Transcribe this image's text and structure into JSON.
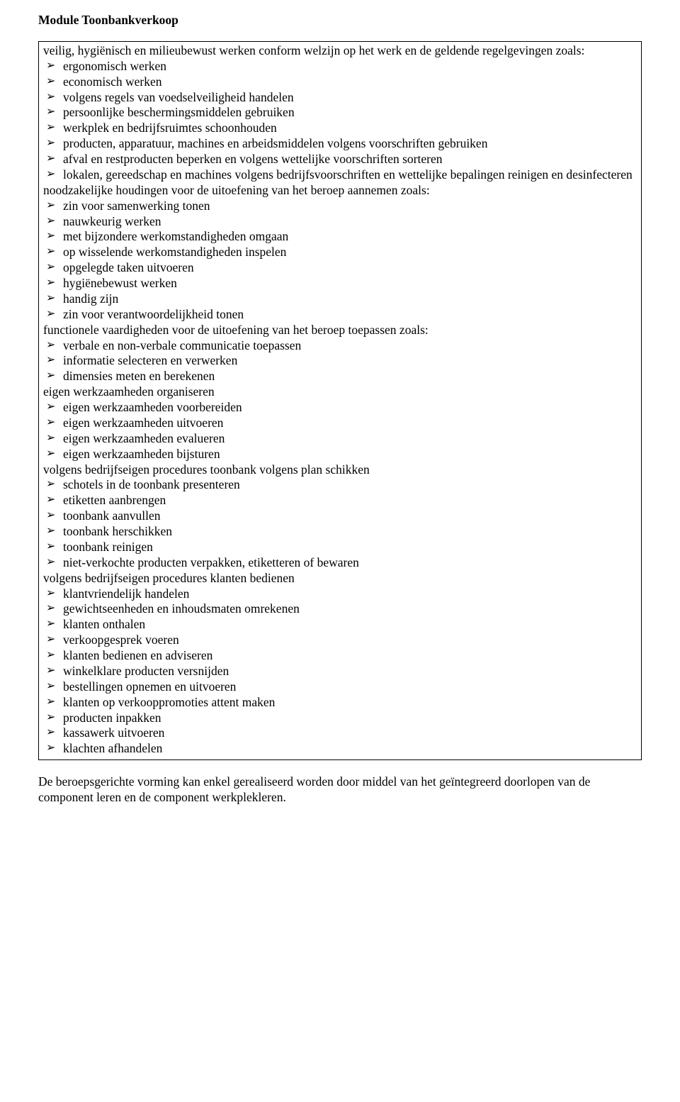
{
  "title": "Module Toonbankverkoop",
  "sections": [
    {
      "heading": "veilig, hygiënisch en milieubewust werken conform welzijn op het werk en de geldende regelgevingen zoals:",
      "items": [
        "ergonomisch werken",
        "economisch werken",
        "volgens regels van voedselveiligheid handelen",
        "persoonlijke beschermingsmiddelen gebruiken",
        "werkplek en bedrijfsruimtes schoonhouden",
        "producten, apparatuur, machines en arbeidsmiddelen volgens voorschriften gebruiken",
        "afval en restproducten beperken en volgens wettelijke voorschriften sorteren",
        "lokalen, gereedschap en machines volgens bedrijfsvoorschriften en wettelijke bepalingen reinigen en desinfecteren"
      ]
    },
    {
      "heading": "noodzakelijke houdingen voor de uitoefening van het beroep aannemen zoals:",
      "items": [
        "zin voor samenwerking tonen",
        "nauwkeurig werken",
        "met bijzondere werkomstandigheden omgaan",
        "op wisselende werkomstandigheden inspelen",
        "opgelegde taken uitvoeren",
        "hygiënebewust werken",
        "handig zijn",
        "zin voor verantwoordelijkheid tonen"
      ]
    },
    {
      "heading": "functionele vaardigheden voor de uitoefening van het beroep toepassen zoals:",
      "items": [
        "verbale en non-verbale communicatie toepassen",
        "informatie selecteren en verwerken",
        "dimensies meten en berekenen"
      ]
    },
    {
      "heading": "eigen werkzaamheden organiseren",
      "items": [
        "eigen werkzaamheden voorbereiden",
        "eigen werkzaamheden uitvoeren",
        "eigen werkzaamheden evalueren",
        "eigen werkzaamheden bijsturen"
      ]
    },
    {
      "heading": "volgens bedrijfseigen procedures toonbank volgens plan schikken",
      "items": [
        "schotels in de toonbank presenteren",
        "etiketten aanbrengen",
        "toonbank aanvullen",
        "toonbank herschikken",
        "toonbank reinigen",
        "niet-verkochte producten verpakken, etiketteren of bewaren"
      ]
    },
    {
      "heading": "volgens bedrijfseigen procedures klanten bedienen",
      "items": [
        "klantvriendelijk handelen",
        "gewichtseenheden en inhoudsmaten omrekenen",
        "klanten onthalen",
        "verkoopgesprek voeren",
        "klanten bedienen en adviseren",
        "winkelklare producten versnijden",
        "bestellingen opnemen en uitvoeren",
        "klanten op verkooppromoties attent maken",
        "producten inpakken",
        "kassawerk uitvoeren",
        "klachten afhandelen"
      ]
    }
  ],
  "footer": "De beroepsgerichte vorming kan enkel gerealiseerd worden door middel van het geïntegreerd doorlopen van de component leren en de component werkplekleren."
}
